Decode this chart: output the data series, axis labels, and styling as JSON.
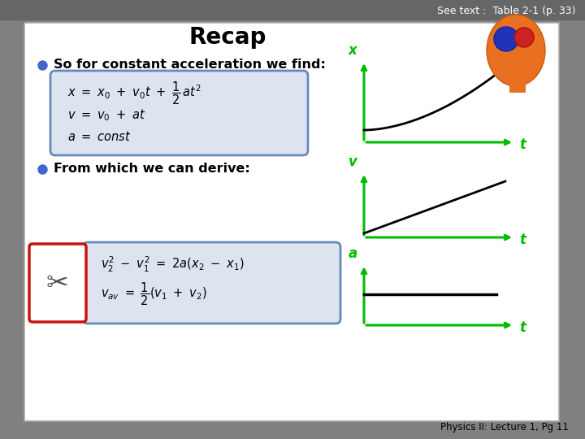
{
  "background_outer": "#808080",
  "background_inner": "#ffffff",
  "header_text": "See text :  Table 2-1 (p. 33)",
  "header_color": "#ffffff",
  "header_bg": "#666666",
  "title": "Recap",
  "bullet1": "So for constant acceleration we find:",
  "bullet2": "From which we can derive:",
  "footer": "Physics II: Lecture 1, Pg 11",
  "green_color": "#00bb00",
  "black_color": "#000000",
  "bullet_color": "#4466cc",
  "eq_box_edge": "#6688bb",
  "eq_box_face": "#dde4f0",
  "scissors_box_color": "#cc1111"
}
